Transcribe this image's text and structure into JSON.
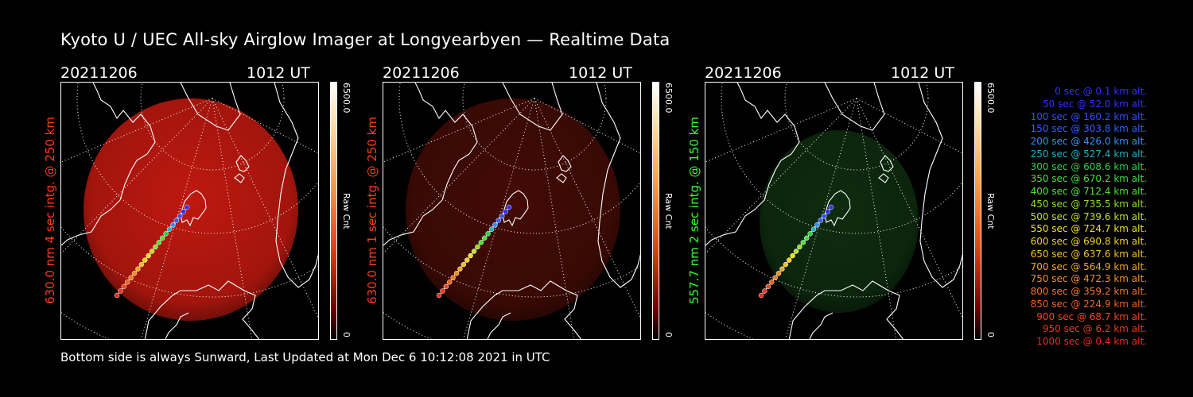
{
  "title": "Kyoto U / UEC All-sky Airglow Imager at Longyearbyen — Realtime Data",
  "footer": "Bottom side is always Sunward, Last Updated at Mon Dec  6 10:12:08 2021 in UTC",
  "colors": {
    "background": "#000000",
    "red_channel": "#ff3b1a",
    "green_channel": "#33ff33",
    "text": "#ffffff"
  },
  "panels": [
    {
      "date": "20211206",
      "time": "1012 UT",
      "ylabel": "630.0 nm  4 sec intg. @ 250 km",
      "label_color": "#ff3b1a",
      "airglow_color": "#c81a10",
      "airglow_opacity": 0.95,
      "colorbar_max": "6500.0",
      "colorbar_min": "0",
      "colorbar_unit": "Raw Cnt"
    },
    {
      "date": "20211206",
      "time": "1012 UT",
      "ylabel": "630.0 nm  1 sec intg. @ 250 km",
      "label_color": "#ff3b1a",
      "airglow_color": "#4a0c06",
      "airglow_opacity": 0.9,
      "colorbar_max": "6500.0",
      "colorbar_min": "0",
      "colorbar_unit": "Raw Cnt"
    },
    {
      "date": "20211206",
      "time": "1012 UT",
      "ylabel": "557.7 nm  2 sec intg. @ 150 km",
      "label_color": "#33ff33",
      "airglow_color": "#0f3010",
      "airglow_opacity": 0.9,
      "colorbar_max": "6500.0",
      "colorbar_min": "0",
      "colorbar_unit": "Raw Cnt"
    }
  ],
  "trajectory_legend": [
    {
      "text": "0 sec @    0.1 km alt.",
      "color": "#3030ff"
    },
    {
      "text": "50 sec @   52.0 km alt.",
      "color": "#3030ff"
    },
    {
      "text": "100 sec @  160.2 km alt.",
      "color": "#3050ff"
    },
    {
      "text": "150 sec @  303.8 km alt.",
      "color": "#3060ff"
    },
    {
      "text": "200 sec @  426.0 km alt.",
      "color": "#3090ff"
    },
    {
      "text": "250 sec @  527.4 km alt.",
      "color": "#20b0c0"
    },
    {
      "text": "300 sec @  608.6 km alt.",
      "color": "#30d050"
    },
    {
      "text": "350 sec @  670.2 km alt.",
      "color": "#40e040"
    },
    {
      "text": "400 sec @  712.4 km alt.",
      "color": "#50e030"
    },
    {
      "text": "450 sec @  735.5 km alt.",
      "color": "#90e020"
    },
    {
      "text": "500 sec @  739.6 km alt.",
      "color": "#c0e020"
    },
    {
      "text": "550 sec @  724.7 km alt.",
      "color": "#e8e020"
    },
    {
      "text": "600 sec @  690.8 km alt.",
      "color": "#f0d020"
    },
    {
      "text": "650 sec @  637.6 km alt.",
      "color": "#f0c020"
    },
    {
      "text": "700 sec @  564.9 km alt.",
      "color": "#f0a820"
    },
    {
      "text": "750 sec @  472.3 km alt.",
      "color": "#f09020"
    },
    {
      "text": "800 sec @  359.2 km alt.",
      "color": "#f07820"
    },
    {
      "text": "850 sec @  224.9 km alt.",
      "color": "#f06020"
    },
    {
      "text": "900 sec @   68.7 km alt.",
      "color": "#f04820"
    },
    {
      "text": "950 sec @    6.2 km alt.",
      "color": "#f03820"
    },
    {
      "text": "1000 sec @    0.4 km alt.",
      "color": "#f02820"
    }
  ]
}
